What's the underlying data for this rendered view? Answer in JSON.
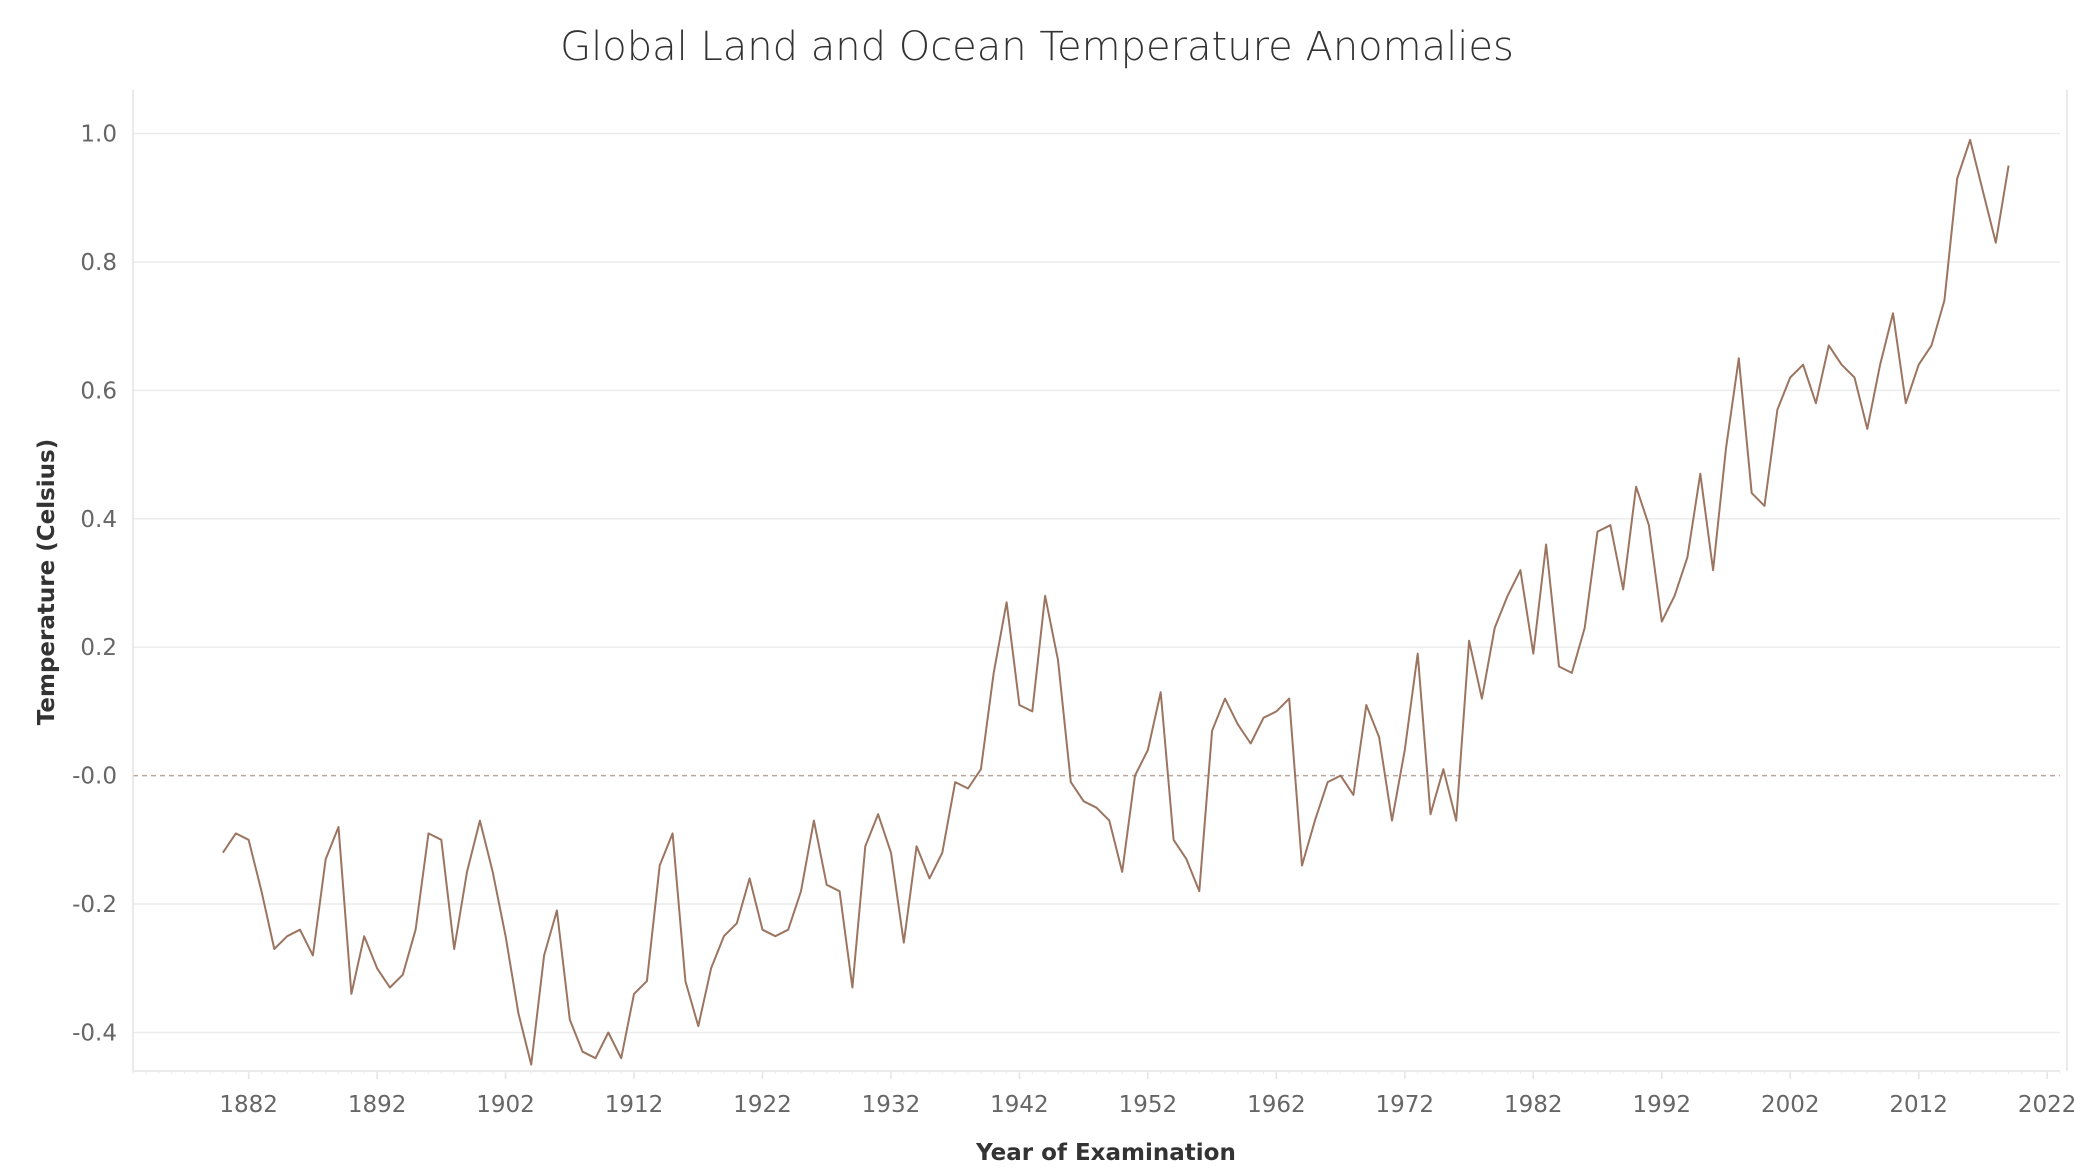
{
  "colors": {
    "series": "#9c7561",
    "grid": "#ececec"
  },
  "chart_data": {
    "type": "line",
    "title": "Global Land and Ocean Temperature Anomalies",
    "xlabel": "Year of Examination",
    "ylabel": "Temperature (Celsius)",
    "xlim": [
      1873,
      2023
    ],
    "ylim": [
      -0.46,
      1.06
    ],
    "xticks": [
      "1882",
      "1892",
      "1902",
      "1912",
      "1922",
      "1932",
      "1942",
      "1952",
      "1962",
      "1972",
      "1982",
      "1992",
      "2002",
      "2012",
      "2022"
    ],
    "yticks": [
      "1.0",
      "0.8",
      "0.6",
      "0.4",
      "0.2",
      "-0.0",
      "-0.2",
      "-0.4"
    ],
    "grid": true,
    "series": [
      {
        "x": [
          1880,
          1881,
          1882,
          1883,
          1884,
          1885,
          1886,
          1887,
          1888,
          1889,
          1890,
          1891,
          1892,
          1893,
          1894,
          1895,
          1896,
          1897,
          1898,
          1899,
          1900,
          1901,
          1902,
          1903,
          1904,
          1905,
          1906,
          1907,
          1908,
          1909,
          1910,
          1911,
          1912,
          1913,
          1914,
          1915,
          1916,
          1917,
          1918,
          1919,
          1920,
          1921,
          1922,
          1923,
          1924,
          1925,
          1926,
          1927,
          1928,
          1929,
          1930,
          1931,
          1932,
          1933,
          1934,
          1935,
          1936,
          1937,
          1938,
          1939,
          1940,
          1941,
          1942,
          1943,
          1944,
          1945,
          1946,
          1947,
          1948,
          1949,
          1950,
          1951,
          1952,
          1953,
          1954,
          1955,
          1956,
          1957,
          1958,
          1959,
          1960,
          1961,
          1962,
          1963,
          1964,
          1965,
          1966,
          1967,
          1968,
          1969,
          1970,
          1971,
          1972,
          1973,
          1974,
          1975,
          1976,
          1977,
          1978,
          1979,
          1980,
          1981,
          1982,
          1983,
          1984,
          1985,
          1986,
          1987,
          1988,
          1989,
          1990,
          1991,
          1992,
          1993,
          1994,
          1995,
          1996,
          1997,
          1998,
          1999,
          2000,
          2001,
          2002,
          2003,
          2004,
          2005,
          2006,
          2007,
          2008,
          2009,
          2010,
          2011,
          2012,
          2013,
          2014,
          2015,
          2016,
          2017,
          2018,
          2019
        ],
        "values": [
          -0.12,
          -0.09,
          -0.1,
          -0.18,
          -0.27,
          -0.25,
          -0.24,
          -0.28,
          -0.13,
          -0.08,
          -0.34,
          -0.25,
          -0.3,
          -0.33,
          -0.31,
          -0.24,
          -0.09,
          -0.1,
          -0.27,
          -0.15,
          -0.07,
          -0.15,
          -0.25,
          -0.37,
          -0.45,
          -0.28,
          -0.21,
          -0.38,
          -0.43,
          -0.44,
          -0.4,
          -0.44,
          -0.34,
          -0.32,
          -0.14,
          -0.09,
          -0.32,
          -0.39,
          -0.3,
          -0.25,
          -0.23,
          -0.16,
          -0.24,
          -0.25,
          -0.24,
          -0.18,
          -0.07,
          -0.17,
          -0.18,
          -0.33,
          -0.11,
          -0.06,
          -0.12,
          -0.26,
          -0.11,
          -0.16,
          -0.12,
          -0.01,
          -0.02,
          0.01,
          0.16,
          0.27,
          0.11,
          0.1,
          0.28,
          0.18,
          -0.01,
          -0.04,
          -0.05,
          -0.07,
          -0.15,
          0.0,
          0.04,
          0.13,
          -0.1,
          -0.13,
          -0.18,
          0.07,
          0.12,
          0.08,
          0.05,
          0.09,
          0.1,
          0.12,
          -0.14,
          -0.07,
          -0.01,
          0.0,
          -0.03,
          0.11,
          0.06,
          -0.07,
          0.04,
          0.19,
          -0.06,
          0.01,
          -0.07,
          0.21,
          0.12,
          0.23,
          0.28,
          0.32,
          0.19,
          0.36,
          0.17,
          0.16,
          0.23,
          0.38,
          0.39,
          0.29,
          0.45,
          0.39,
          0.24,
          0.28,
          0.34,
          0.47,
          0.32,
          0.51,
          0.65,
          0.44,
          0.42,
          0.57,
          0.62,
          0.64,
          0.58,
          0.67,
          0.64,
          0.62,
          0.54,
          0.64,
          0.72,
          0.58,
          0.64,
          0.67,
          0.74,
          0.93,
          0.99,
          0.91,
          0.83,
          0.95
        ]
      }
    ]
  }
}
